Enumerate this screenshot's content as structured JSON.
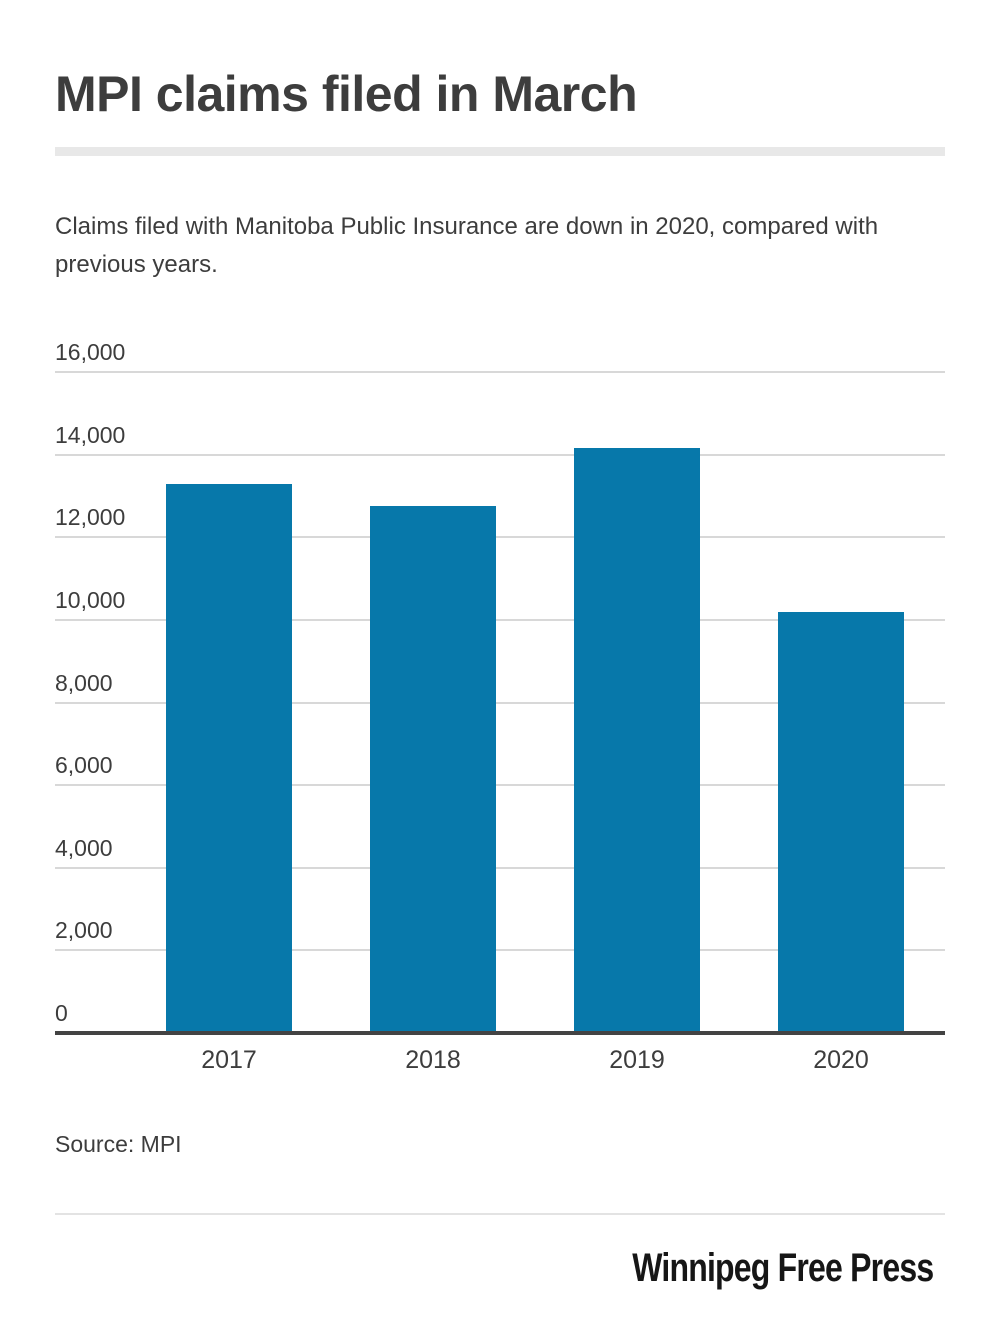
{
  "header": {
    "title": "MPI claims filed in March"
  },
  "description": "Claims filed with Manitoba Public Insurance are down in 2020, compared with previous years.",
  "source_line": "Source: MPI",
  "branding": {
    "publication": "Winnipeg Free Press"
  },
  "colors": {
    "bar": "#0778aa",
    "gridline": "#d8d8d8",
    "axis_line": "#434343",
    "text": "#3d3d3d",
    "logo_text": "#161616",
    "divider": "#e8e8e8"
  },
  "chart_data": {
    "type": "bar",
    "title": "MPI claims filed in March",
    "subtitle": "Claims filed with Manitoba Public Insurance are down in 2020, compared with previous years.",
    "categories": [
      "2017",
      "2018",
      "2019",
      "2020"
    ],
    "values": [
      13300,
      12750,
      14150,
      10200
    ],
    "xlabel": "",
    "ylabel": "",
    "ylim": [
      0,
      16000
    ],
    "ytick_interval": 2000,
    "ytick_labels": [
      "0",
      "2,000",
      "4,000",
      "6,000",
      "8,000",
      "10,000",
      "12,000",
      "14,000",
      "16,000"
    ],
    "grid": true,
    "legend": false,
    "source": "MPI"
  }
}
